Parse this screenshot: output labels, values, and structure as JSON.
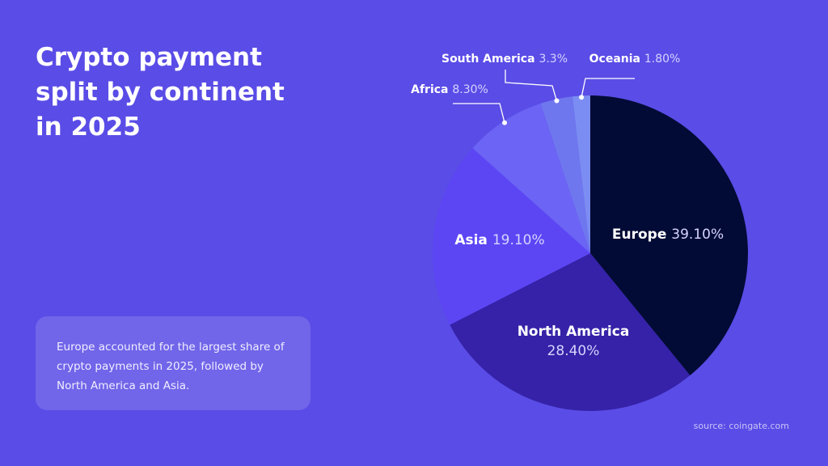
{
  "chart_data": {
    "type": "pie",
    "title": "Crypto payment split by continent in 2025",
    "categories": [
      "Europe",
      "North America",
      "Asia",
      "Africa",
      "South America",
      "Oceania"
    ],
    "values": [
      39.1,
      28.4,
      19.1,
      8.3,
      3.3,
      1.8
    ],
    "value_labels": [
      "39.10%",
      "28.40%",
      "19.10%",
      "8.30%",
      "3.3%",
      "1.80%"
    ],
    "colors": [
      "#020b35",
      "#3522a8",
      "#5c46f4",
      "#6b64f5",
      "#6f77ee",
      "#7b8df2"
    ]
  },
  "note": "Europe accounted for the largest share of crypto payments in 2025, followed by North America and Asia.",
  "source": "source: coingate.com"
}
